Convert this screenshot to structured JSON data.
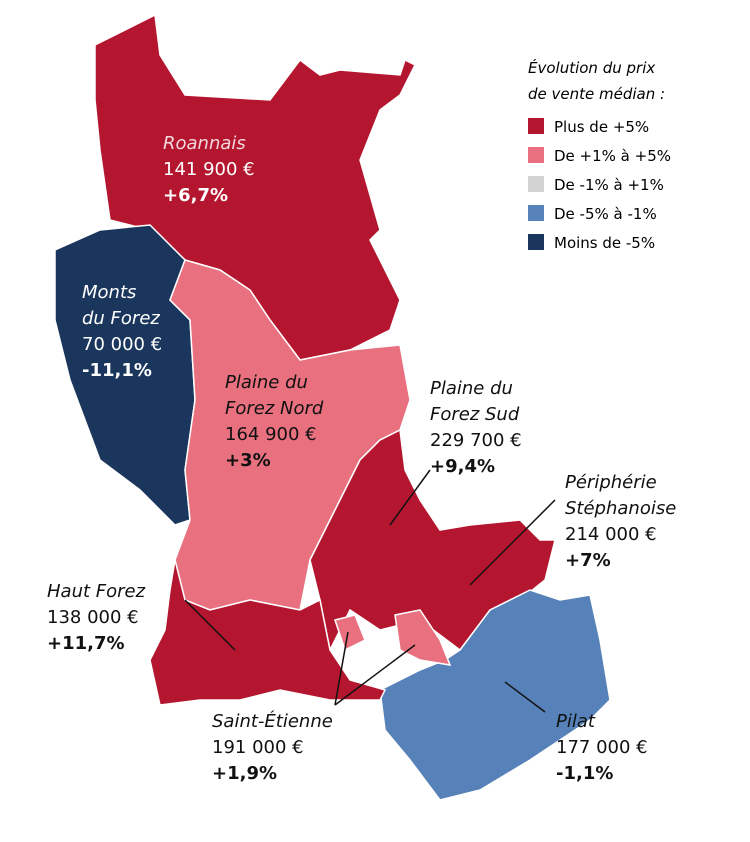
{
  "legend": {
    "title_lines": [
      "Évolution du prix",
      "de vente médian :"
    ],
    "items": [
      "Plus de +5%",
      "De +1% à +5%",
      "De -1% à +1%",
      "De -5% à -1%",
      "Moins de -5%"
    ]
  },
  "regions": [
    {
      "name_lines": [
        "Roannais"
      ],
      "price": "141 900 €",
      "change": "+6,7%"
    },
    {
      "name_lines": [
        "Monts",
        "du Forez"
      ],
      "price": "70 000 €",
      "change": "-11,1%"
    },
    {
      "name_lines": [
        "Plaine du",
        "Forez Nord"
      ],
      "price": "164 900 €",
      "change": "+3%"
    },
    {
      "name_lines": [
        "Plaine du",
        "Forez Sud"
      ],
      "price": "229 700 €",
      "change": "+9,4%"
    },
    {
      "name_lines": [
        "Périphérie",
        "Stéphanoise"
      ],
      "price": "214 000 €",
      "change": "+7%"
    },
    {
      "name_lines": [
        "Haut Forez"
      ],
      "price": "138 000 €",
      "change": "+11,7%"
    },
    {
      "name_lines": [
        "Saint-Étienne"
      ],
      "price": "191 000 €",
      "change": "+1,9%"
    },
    {
      "name_lines": [
        "Pilat"
      ],
      "price": "177 000 €",
      "change": "-1,1%"
    }
  ]
}
